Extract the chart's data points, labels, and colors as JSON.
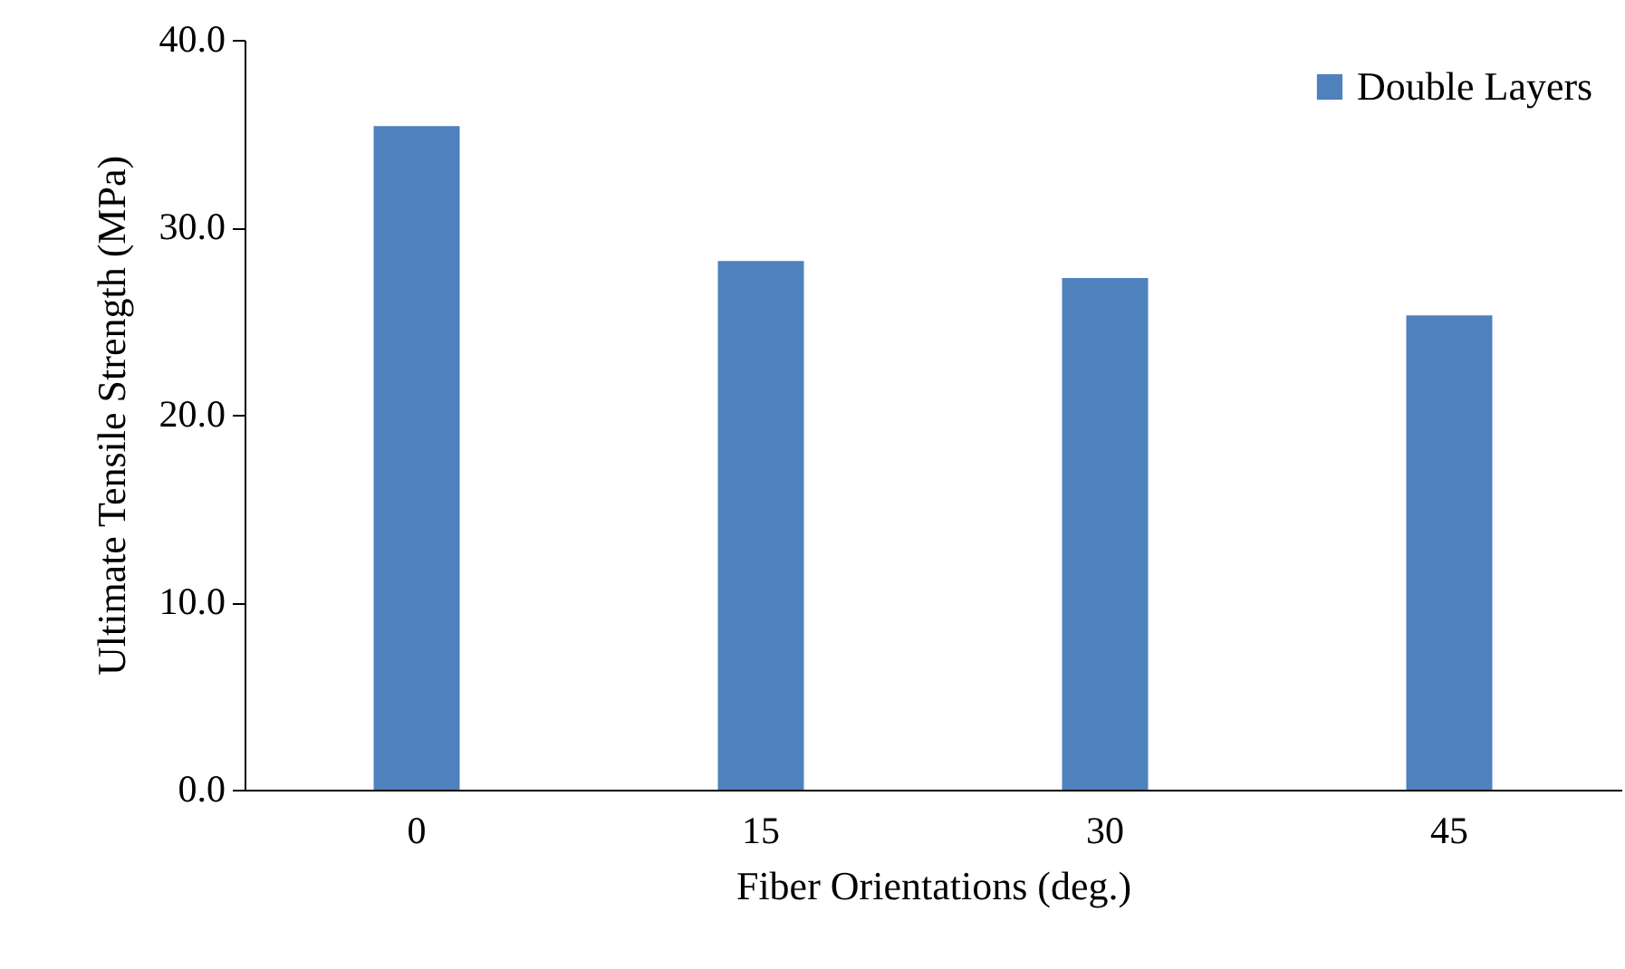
{
  "chart_data": {
    "type": "bar",
    "xlabel": "Fiber Orientations (deg.)",
    "ylabel": "Ultimate Tensile Strength (MPa)",
    "categories": [
      "0",
      "15",
      "30",
      "45"
    ],
    "series": [
      {
        "name": "Double Layers",
        "color": "#4f81bd",
        "values": [
          35.4,
          28.2,
          27.3,
          25.3
        ]
      }
    ],
    "ylim": [
      0,
      40
    ],
    "yticks": [
      {
        "value": 0,
        "label": "0.0"
      },
      {
        "value": 10,
        "label": "10.0"
      },
      {
        "value": 20,
        "label": "20.0"
      },
      {
        "value": 30,
        "label": "30.0"
      },
      {
        "value": 40,
        "label": "40.0"
      }
    ],
    "grid": false,
    "legend": "top right"
  }
}
